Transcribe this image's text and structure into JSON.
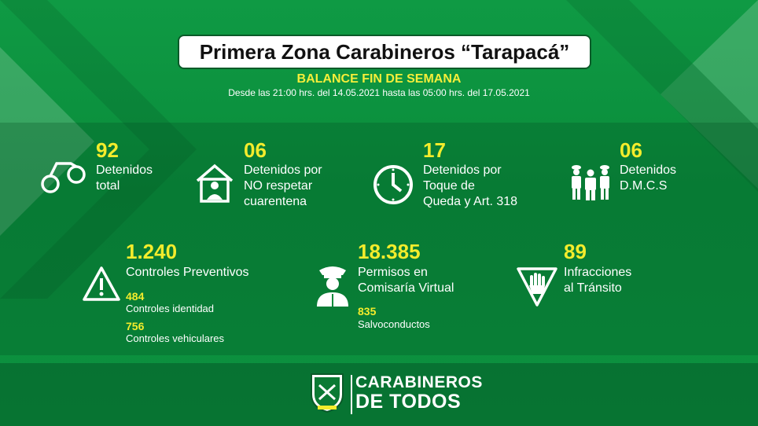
{
  "header": {
    "title": "Primera Zona Carabineros “Tarapacá”",
    "subtitle": "BALANCE FIN DE SEMANA",
    "date_range": "Desde las 21:00 hrs. del 14.05.2021 hasta las 05:00 hrs. del 17.05.2021"
  },
  "stats": {
    "detenidos_total": {
      "value": "92",
      "label_1": "Detenidos",
      "label_2": "total",
      "icon": "handcuffs-icon"
    },
    "cuarentena": {
      "value": "06",
      "label_1": "Detenidos por",
      "label_2": "NO respetar",
      "label_3": "cuarentena",
      "icon": "house-person-icon"
    },
    "toque_queda": {
      "value": "17",
      "label_1": "Detenidos por",
      "label_2": "Toque de",
      "label_3": "Queda y Art. 318",
      "icon": "clock-icon"
    },
    "dmcs": {
      "value": "06",
      "label_1": "Detenidos",
      "label_2": "D.M.C.S",
      "icon": "officers-icon"
    },
    "controles": {
      "value": "1.240",
      "label": "Controles Preventivos",
      "icon": "warning-icon",
      "identidad_value": "484",
      "identidad_label": "Controles identidad",
      "vehiculares_value": "756",
      "vehiculares_label": "Controles vehiculares"
    },
    "permisos": {
      "value": "18.385",
      "label_1": "Permisos en",
      "label_2": "Comisaría Virtual",
      "icon": "police-officer-icon",
      "salvo_value": "835",
      "salvo_label": "Salvoconductos"
    },
    "infracciones": {
      "value": "89",
      "label_1": "Infracciones",
      "label_2": "al Tránsito",
      "icon": "stop-hand-sign-icon"
    }
  },
  "footer": {
    "brand_line1": "CARABINEROS",
    "brand_line2": "DE TODOS",
    "crest_icon": "carabineros-crest-icon"
  },
  "colors": {
    "background": "#0b8a3a",
    "accent": "#f3ec2c",
    "text": "#ffffff"
  }
}
